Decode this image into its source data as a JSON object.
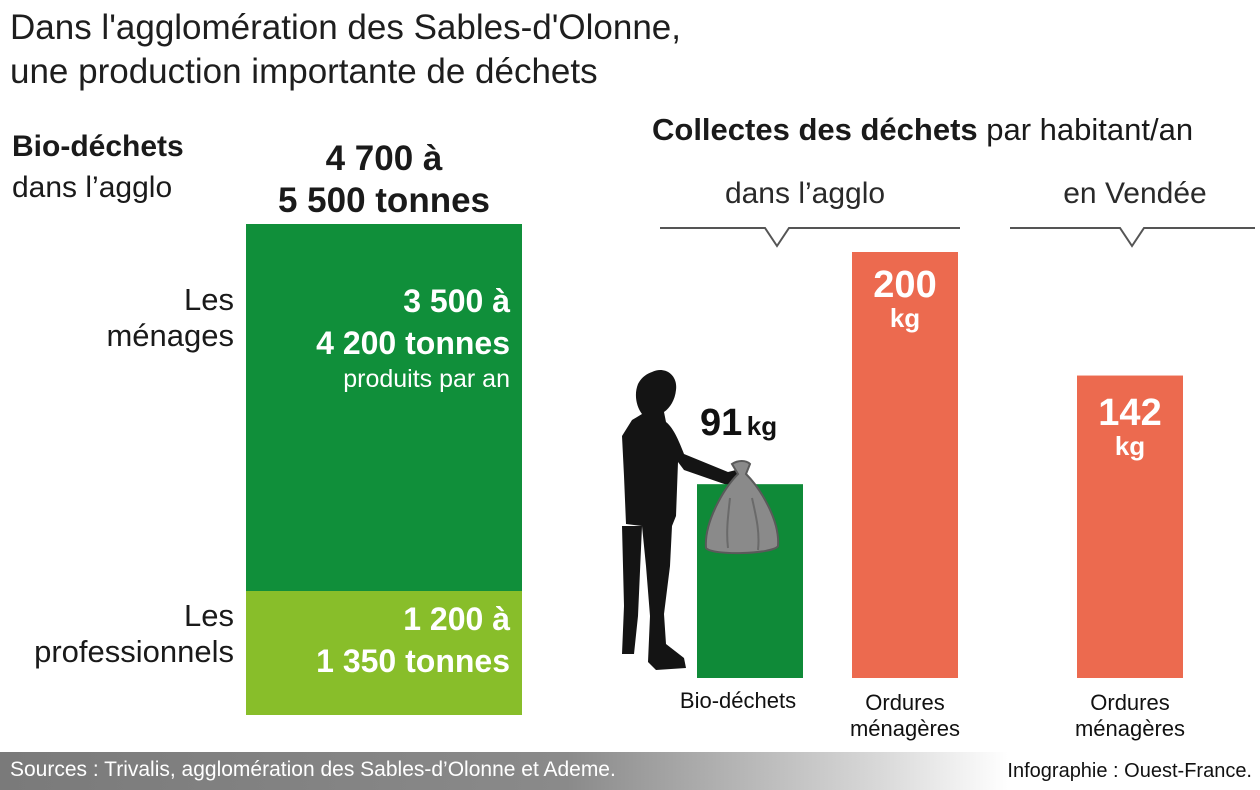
{
  "title": {
    "line1": "Dans l'agglomération des Sables-d'Olonne,",
    "line2": "une production importante de déchets"
  },
  "biodechets": {
    "heading_bold": "Bio-déchets",
    "heading_rest": "dans l’agglo",
    "total_line1": "4 700 à",
    "total_line2": "5 500 tonnes",
    "menages": {
      "label_line1": "Les",
      "label_line2": "ménages",
      "value_line1": "3 500 à",
      "value_line2": "4 200 tonnes",
      "sub": "produits par an",
      "color": "#108f3a"
    },
    "professionnels": {
      "label_line1": "Les",
      "label_line2": "professionnels",
      "value_line1": "1 200 à",
      "value_line2": "1 350 tonnes",
      "color": "#88be2a"
    }
  },
  "collectes": {
    "heading_bold": "Collectes des déchets",
    "heading_rest": "par habitant/an",
    "group_agglo": "dans l’agglo",
    "group_vendee": "en Vendée"
  },
  "chart_data": {
    "type": "bar",
    "unit": "kg",
    "title": "Collectes des déchets par habitant/an",
    "groups": [
      "dans l’agglo",
      "en Vendée"
    ],
    "bars": [
      {
        "group": "dans l’agglo",
        "category_line1": "Bio-déchets",
        "category_line2": "",
        "value": 91,
        "value_label": "91",
        "unit_label": "kg",
        "color": "#0f8a38"
      },
      {
        "group": "dans l’agglo",
        "category_line1": "Ordures",
        "category_line2": "ménagères",
        "value": 200,
        "value_label": "200",
        "unit_label": "kg",
        "color": "#ec6a4f"
      },
      {
        "group": "en Vendée",
        "category_line1": "Ordures",
        "category_line2": "ménagères",
        "value": 142,
        "value_label": "142",
        "unit_label": "kg",
        "color": "#ec6a4f"
      }
    ]
  },
  "footer": {
    "sources": "Sources : Trivalis, agglomération des Sables-d’Olonne et Ademe.",
    "credit": "Infographie : Ouest-France."
  }
}
